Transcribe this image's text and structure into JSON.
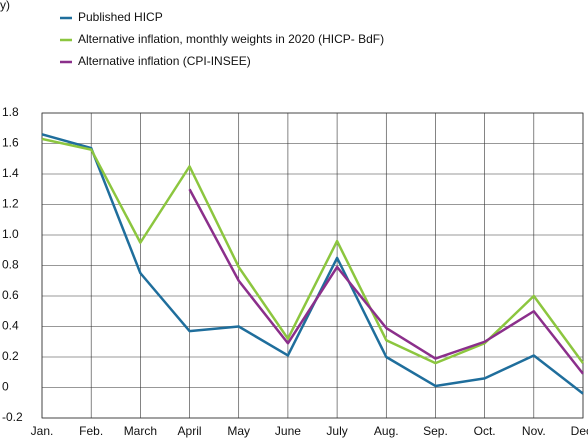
{
  "chart_data": {
    "type": "line",
    "subtitle": "y)",
    "categories": [
      "Jan.",
      "Feb.",
      "March",
      "April",
      "May",
      "June",
      "July",
      "Aug.",
      "Sep.",
      "Oct.",
      "Nov.",
      "Dec."
    ],
    "series": [
      {
        "name": "Published HICP",
        "color": "#1f6e9c",
        "values": [
          1.66,
          1.57,
          0.75,
          0.37,
          0.4,
          0.21,
          0.85,
          0.2,
          0.01,
          0.06,
          0.21,
          -0.04
        ]
      },
      {
        "name": "Alternative inflation, monthly weights in 2020 (HICP- BdF)",
        "color": "#8cc63f",
        "values": [
          1.63,
          1.56,
          0.95,
          1.45,
          0.79,
          0.32,
          0.96,
          0.31,
          0.16,
          0.29,
          0.6,
          0.16
        ]
      },
      {
        "name": "Alternative inflation (CPI-INSEE)",
        "color": "#8b2f8b",
        "values": [
          null,
          null,
          null,
          1.3,
          0.7,
          0.29,
          0.79,
          0.39,
          0.19,
          0.3,
          0.5,
          0.09
        ]
      }
    ],
    "ylim": [
      -0.2,
      1.8
    ],
    "yticks": [
      -0.2,
      0,
      0.2,
      0.4,
      0.6,
      0.8,
      {
        "value": 1,
        "label": "1.0"
      },
      1.2,
      1.4,
      1.6,
      1.8
    ],
    "grid": true
  }
}
